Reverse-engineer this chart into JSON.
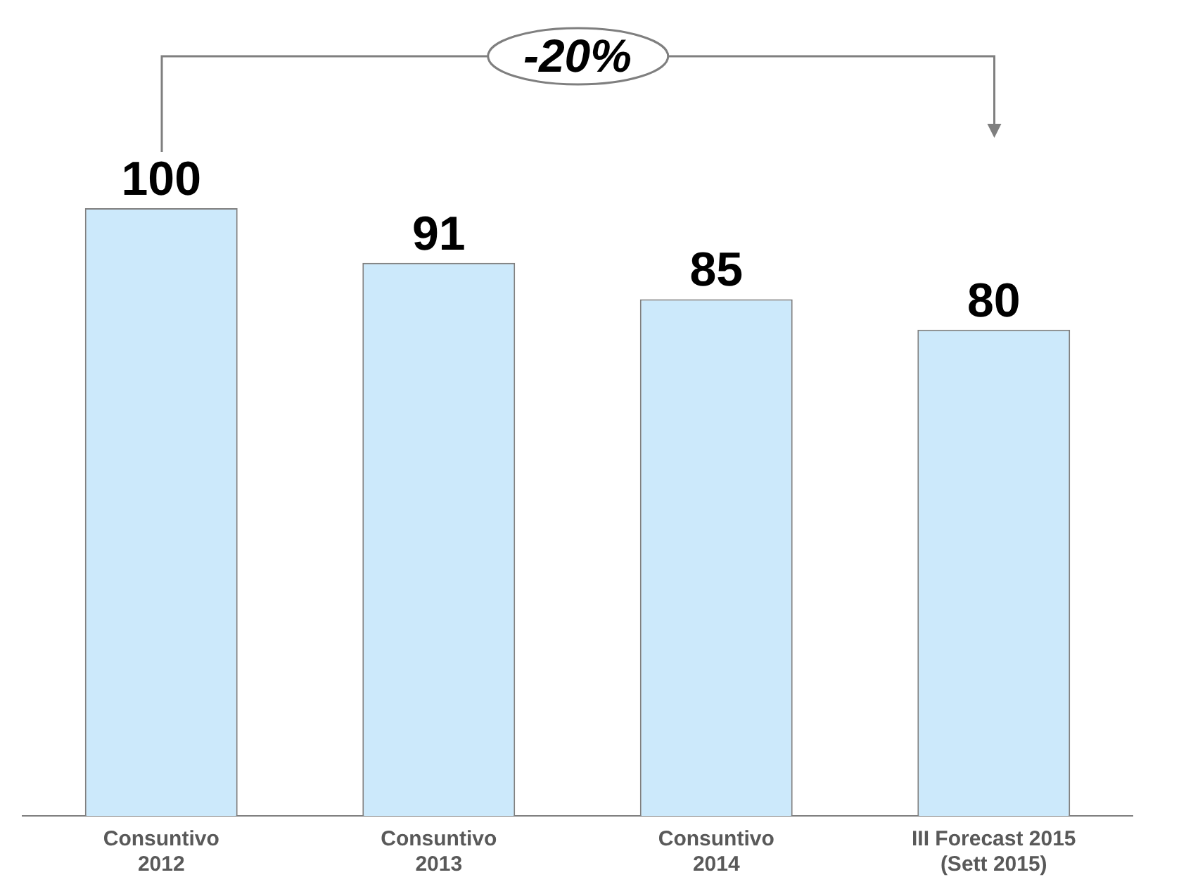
{
  "chart_data": {
    "type": "bar",
    "categories": [
      "Consuntivo\n2012",
      "Consuntivo\n2013",
      "Consuntivo\n2014",
      "III Forecast 2015\n(Sett 2015)"
    ],
    "values": [
      100,
      91,
      85,
      80
    ],
    "color": "#cce9fb",
    "data_labels": true,
    "annotations": [
      "-20%"
    ]
  }
}
